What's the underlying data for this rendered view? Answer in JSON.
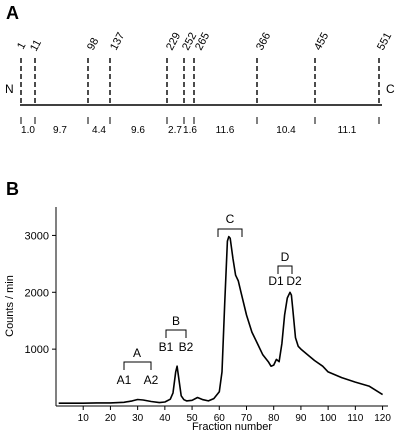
{
  "figure": {
    "panel_a": {
      "label": "A",
      "n_terminal": "N",
      "c_terminal": "C",
      "sites": [
        "1",
        "11",
        "98",
        "137",
        "229",
        "252",
        "265",
        "366",
        "455",
        "551"
      ],
      "segments": [
        "1.0",
        "9.7",
        "4.4",
        "9.6",
        "2.7",
        "1.6",
        "11.6",
        "10.4",
        "11.1"
      ]
    },
    "panel_b": {
      "label": "B",
      "peak_groups": [
        {
          "label": "A",
          "sub": [
            "A1",
            "A2"
          ]
        },
        {
          "label": "B",
          "sub": [
            "B1",
            "B2"
          ]
        },
        {
          "label": "C",
          "sub": []
        },
        {
          "label": "D",
          "sub": [
            "D1",
            "D2"
          ]
        }
      ]
    }
  },
  "chart_data": {
    "type": "line",
    "title": "",
    "xlabel": "Fraction number",
    "ylabel": "Counts / min",
    "xlim": [
      0,
      122
    ],
    "ylim": [
      0,
      3500
    ],
    "xticks": [
      10,
      20,
      30,
      40,
      50,
      60,
      70,
      80,
      90,
      100,
      110,
      120
    ],
    "yticks": [
      1000,
      2000,
      3000
    ],
    "grid": false,
    "series": [
      {
        "x": [
          1,
          5,
          10,
          15,
          20,
          25,
          28,
          30,
          32,
          35,
          38,
          40,
          42,
          43,
          44,
          44.5,
          45,
          46,
          47,
          48,
          50,
          52,
          54,
          56,
          58,
          60,
          61,
          62,
          63,
          63.5,
          64,
          65,
          66,
          67,
          68,
          70,
          72,
          74,
          76,
          78,
          79,
          80,
          81,
          82,
          83,
          84,
          85,
          86,
          86.5,
          87,
          88,
          89,
          90,
          92,
          95,
          98,
          100,
          105,
          110,
          115,
          120
        ],
        "y": [
          50,
          50,
          50,
          55,
          55,
          65,
          90,
          115,
          105,
          80,
          60,
          70,
          120,
          230,
          600,
          700,
          520,
          180,
          110,
          90,
          100,
          150,
          110,
          90,
          130,
          250,
          600,
          1800,
          2900,
          2980,
          2950,
          2600,
          2300,
          2200,
          2000,
          1600,
          1300,
          1100,
          900,
          780,
          700,
          720,
          820,
          780,
          1100,
          1600,
          1900,
          2000,
          1950,
          1700,
          1200,
          1050,
          1000,
          920,
          800,
          700,
          600,
          500,
          420,
          350,
          200
        ]
      }
    ]
  }
}
